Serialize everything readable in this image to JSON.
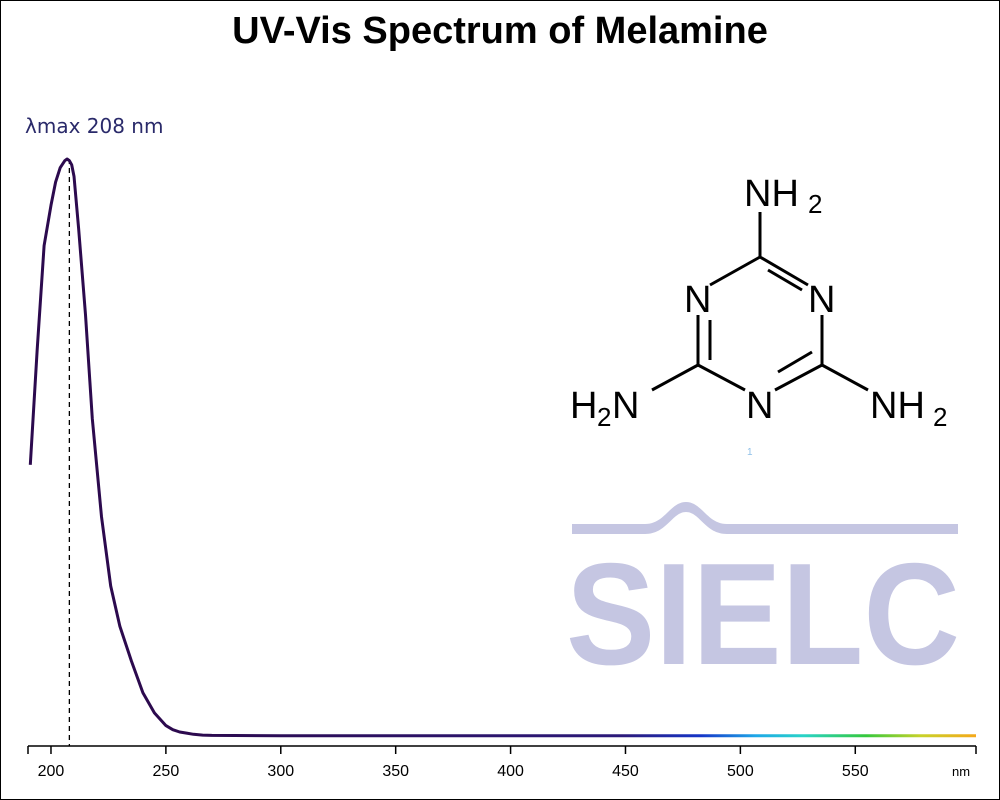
{
  "title": "UV-Vis Spectrum of Melamine",
  "annotation": {
    "lambda_label": "λmax  208 nm"
  },
  "structure": {
    "top_amine": "NH",
    "left_amine": "H",
    "left_amine_tail": "N",
    "right_amine": "NH",
    "subscript": "2",
    "ring_atom": "N",
    "footnote_mark": "1"
  },
  "logo": {
    "text": "SIELC",
    "color": "#c5c6e2"
  },
  "colors": {
    "spectrum_line": "#2c0a4e",
    "axis": "#000000"
  },
  "chart_data": {
    "type": "line",
    "title": "UV-Vis Spectrum of Melamine",
    "xlabel": "nm",
    "ylabel": "",
    "xlim": [
      190,
      600
    ],
    "ylim": [
      0,
      1
    ],
    "x_ticks": [
      200,
      250,
      300,
      350,
      400,
      450,
      500,
      550
    ],
    "x_tick_labels": [
      "200",
      "250",
      "300",
      "350",
      "400",
      "450",
      "500",
      "550"
    ],
    "lambda_max": 208,
    "grid": false,
    "series": [
      {
        "x": [
          191,
          194,
          197,
          200,
          202,
          204,
          206,
          207,
          208,
          209,
          210,
          212,
          215,
          218,
          222,
          226,
          230,
          235,
          240,
          245,
          250,
          253,
          256,
          259,
          262,
          266,
          270,
          280,
          300,
          400,
          500,
          600
        ],
        "y": [
          0.47,
          0.67,
          0.85,
          0.92,
          0.96,
          0.985,
          0.997,
          1.0,
          0.997,
          0.99,
          0.97,
          0.88,
          0.73,
          0.55,
          0.38,
          0.26,
          0.19,
          0.13,
          0.075,
          0.04,
          0.018,
          0.011,
          0.007,
          0.005,
          0.003,
          0.0015,
          0.001,
          0.0008,
          0.0006,
          0.0004,
          0.0003,
          0.0003
        ]
      }
    ]
  }
}
